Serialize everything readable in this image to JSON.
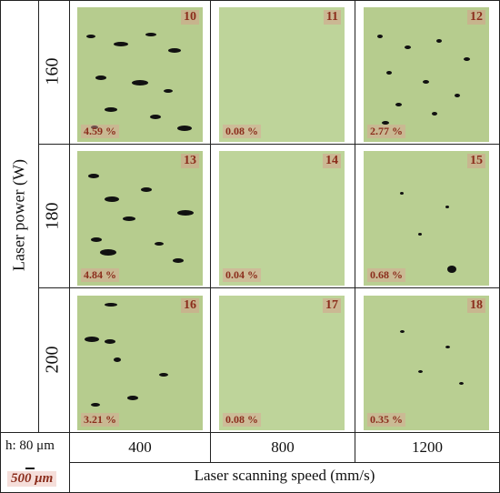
{
  "figure": {
    "y_axis_label": "Laser power (W)",
    "x_axis_label": "Laser scanning speed (mm/s)",
    "hatch_label": "h: 80 μm",
    "scale_label": "500 μm",
    "rows": [
      "160",
      "180",
      "200"
    ],
    "cols": [
      "400",
      "800",
      "1200"
    ],
    "samples": [
      {
        "id": "10",
        "porosity": "4.59 %"
      },
      {
        "id": "11",
        "porosity": "0.08 %"
      },
      {
        "id": "12",
        "porosity": "2.77 %"
      },
      {
        "id": "13",
        "porosity": "4.84 %"
      },
      {
        "id": "14",
        "porosity": "0.04 %"
      },
      {
        "id": "15",
        "porosity": "0.68 %"
      },
      {
        "id": "16",
        "porosity": "3.21 %"
      },
      {
        "id": "17",
        "porosity": "0.08 %"
      },
      {
        "id": "18",
        "porosity": "0.35 %"
      }
    ]
  }
}
